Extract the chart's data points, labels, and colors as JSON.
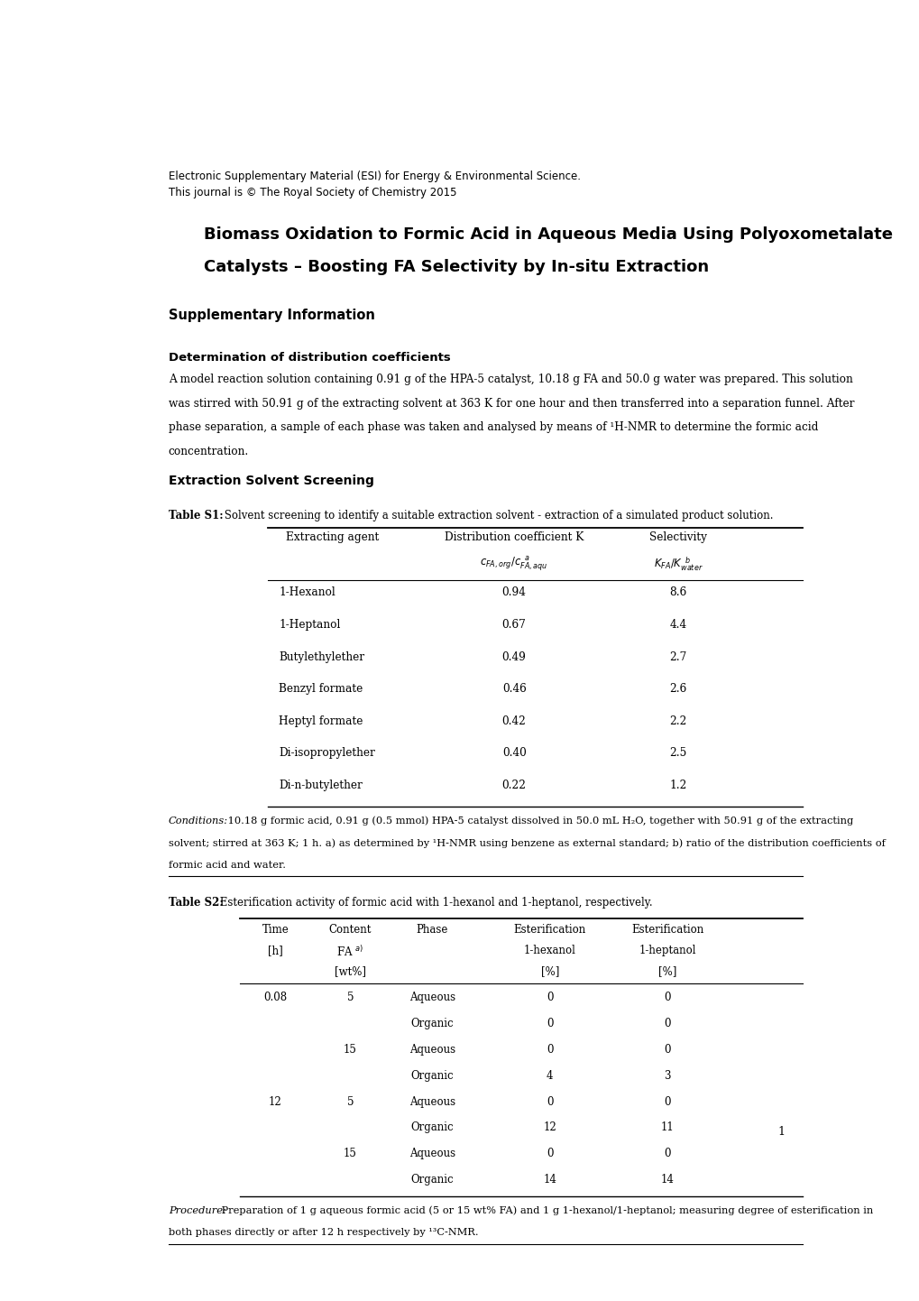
{
  "header_line1": "Electronic Supplementary Material (ESI) for Energy & Environmental Science.",
  "header_line2": "This journal is © The Royal Society of Chemistry 2015",
  "title_line1": "Biomass Oxidation to Formic Acid in Aqueous Media Using Polyoxometalate",
  "title_line2": "Catalysts – Boosting FA Selectivity by In-situ Extraction",
  "supp_info": "Supplementary Information",
  "section1_title": "Determination of distribution coefficients",
  "section1_text": "A model reaction solution containing 0.91 g of the HPA-5 catalyst, 10.18 g FA and 50.0 g water was prepared. This solution\nwas stirred with 50.91 g of the extracting solvent at 363 K for one hour and then transferred into a separation funnel. After\nphase separation, a sample of each phase was taken and analysed by means of ¹H-NMR to determine the formic acid\nconcentration.",
  "section2_title": "Extraction Solvent Screening",
  "table1_caption_bold": "Table S1:",
  "table1_caption_rest": " Solvent screening to identify a suitable extraction solvent - extraction of a simulated product solution.",
  "table1_rows": [
    [
      "1-Hexanol",
      "0.94",
      "8.6"
    ],
    [
      "1-Heptanol",
      "0.67",
      "4.4"
    ],
    [
      "Butylethylether",
      "0.49",
      "2.7"
    ],
    [
      "Benzyl formate",
      "0.46",
      "2.6"
    ],
    [
      "Heptyl formate",
      "0.42",
      "2.2"
    ],
    [
      "Di-isopropylether",
      "0.40",
      "2.5"
    ],
    [
      "Di-n-butylether",
      "0.22",
      "1.2"
    ]
  ],
  "table1_footnote_italic": "Conditions:",
  "table1_footnote_line1": " 10.18 g formic acid, 0.91 g (0.5 mmol) HPA-5 catalyst dissolved in 50.0 mL H₂O, together with 50.91 g of the extracting",
  "table1_footnote_line2": "solvent; stirred at 363 K; 1 h. a) as determined by ¹H-NMR using benzene as external standard; b) ratio of the distribution coefficients of",
  "table1_footnote_line3": "formic acid and water.",
  "table2_caption_bold": "Table S2:",
  "table2_caption_rest": " Esterification activity of formic acid with 1-hexanol and 1-heptanol, respectively.",
  "table2_rows": [
    [
      "0.08",
      "5",
      "Aqueous",
      "0",
      "0"
    ],
    [
      "",
      "",
      "Organic",
      "0",
      "0"
    ],
    [
      "",
      "15",
      "Aqueous",
      "0",
      "0"
    ],
    [
      "",
      "",
      "Organic",
      "4",
      "3"
    ],
    [
      "12",
      "5",
      "Aqueous",
      "0",
      "0"
    ],
    [
      "",
      "",
      "Organic",
      "12",
      "11"
    ],
    [
      "",
      "15",
      "Aqueous",
      "0",
      "0"
    ],
    [
      "",
      "",
      "Organic",
      "14",
      "14"
    ]
  ],
  "table2_footnote_italic": "Procedure:",
  "table2_footnote_line1": " Preparation of 1 g aqueous formic acid (5 or 15 wt% FA) and 1 g 1-hexanol/1-heptanol; measuring degree of esterification in",
  "table2_footnote_line2": "both phases directly or after 12 h respectively by ¹³C-NMR.",
  "page_number": "1",
  "bg_color": "#ffffff"
}
